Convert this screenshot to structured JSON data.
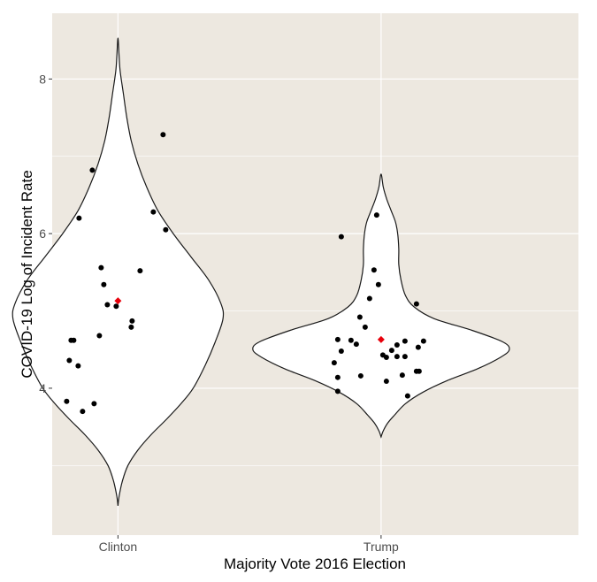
{
  "chart_data": {
    "type": "violin",
    "xlabel": "Majority Vote 2016 Election",
    "ylabel": "COVID-19 Log of Incident Rate",
    "categories": [
      "Clinton",
      "Trump"
    ],
    "ylim": [
      2.1,
      8.85
    ],
    "yticks": [
      4,
      6,
      8
    ],
    "grid": true,
    "colors": {
      "panel_background": "#ede8e0",
      "grid": "#ffffff",
      "violin_fill": "#ffffff",
      "violin_outline": "#1a1a1a",
      "point": "#000000",
      "mean_marker": "#e8000b"
    },
    "groups": [
      {
        "name": "Clinton",
        "mean": 5.13,
        "range": [
          2.48,
          8.53
        ],
        "density_profile": [
          [
            2.48,
            0.0
          ],
          [
            2.6,
            0.01
          ],
          [
            2.8,
            0.04
          ],
          [
            3.0,
            0.09
          ],
          [
            3.2,
            0.18
          ],
          [
            3.4,
            0.3
          ],
          [
            3.6,
            0.44
          ],
          [
            3.8,
            0.57
          ],
          [
            4.0,
            0.68
          ],
          [
            4.3,
            0.79
          ],
          [
            4.6,
            0.88
          ],
          [
            4.9,
            0.95
          ],
          [
            5.1,
            0.93
          ],
          [
            5.4,
            0.82
          ],
          [
            5.7,
            0.66
          ],
          [
            6.0,
            0.5
          ],
          [
            6.3,
            0.36
          ],
          [
            6.6,
            0.26
          ],
          [
            6.9,
            0.18
          ],
          [
            7.2,
            0.12
          ],
          [
            7.5,
            0.08
          ],
          [
            7.8,
            0.05
          ],
          [
            8.1,
            0.02
          ],
          [
            8.3,
            0.01
          ],
          [
            8.53,
            0.0
          ]
        ],
        "points": [
          {
            "x": -0.58,
            "y": 3.83
          },
          {
            "x": -0.4,
            "y": 3.7
          },
          {
            "x": -0.27,
            "y": 3.8
          },
          {
            "x": -0.55,
            "y": 4.36
          },
          {
            "x": -0.45,
            "y": 4.29
          },
          {
            "x": -0.5,
            "y": 4.62
          },
          {
            "x": -0.53,
            "y": 4.62
          },
          {
            "x": -0.21,
            "y": 4.68
          },
          {
            "x": 0.15,
            "y": 4.79
          },
          {
            "x": 0.16,
            "y": 4.87
          },
          {
            "x": -0.12,
            "y": 5.08
          },
          {
            "x": -0.02,
            "y": 5.06
          },
          {
            "x": -0.16,
            "y": 5.34
          },
          {
            "x": -0.19,
            "y": 5.56
          },
          {
            "x": 0.25,
            "y": 5.52
          },
          {
            "x": 0.54,
            "y": 6.05
          },
          {
            "x": 0.4,
            "y": 6.28
          },
          {
            "x": -0.44,
            "y": 6.2
          },
          {
            "x": -0.29,
            "y": 6.82
          },
          {
            "x": 0.51,
            "y": 7.28
          }
        ]
      },
      {
        "name": "Trump",
        "mean": 4.63,
        "range": [
          3.37,
          6.77
        ],
        "density_profile": [
          [
            3.37,
            0.0
          ],
          [
            3.45,
            0.02
          ],
          [
            3.55,
            0.06
          ],
          [
            3.65,
            0.12
          ],
          [
            3.8,
            0.22
          ],
          [
            3.95,
            0.38
          ],
          [
            4.1,
            0.6
          ],
          [
            4.25,
            0.87
          ],
          [
            4.4,
            1.08
          ],
          [
            4.5,
            1.16
          ],
          [
            4.6,
            1.1
          ],
          [
            4.75,
            0.82
          ],
          [
            4.9,
            0.48
          ],
          [
            5.05,
            0.3
          ],
          [
            5.2,
            0.22
          ],
          [
            5.4,
            0.18
          ],
          [
            5.6,
            0.16
          ],
          [
            5.8,
            0.16
          ],
          [
            6.0,
            0.15
          ],
          [
            6.15,
            0.13
          ],
          [
            6.3,
            0.09
          ],
          [
            6.45,
            0.05
          ],
          [
            6.6,
            0.02
          ],
          [
            6.77,
            0.0
          ]
        ],
        "points": [
          {
            "x": -0.45,
            "y": 5.96
          },
          {
            "x": -0.05,
            "y": 6.24
          },
          {
            "x": -0.08,
            "y": 5.53
          },
          {
            "x": -0.03,
            "y": 5.34
          },
          {
            "x": -0.13,
            "y": 5.16
          },
          {
            "x": 0.4,
            "y": 5.09
          },
          {
            "x": -0.24,
            "y": 4.92
          },
          {
            "x": -0.18,
            "y": 4.79
          },
          {
            "x": -0.49,
            "y": 4.63
          },
          {
            "x": -0.34,
            "y": 4.62
          },
          {
            "x": -0.28,
            "y": 4.57
          },
          {
            "x": 0.48,
            "y": 4.61
          },
          {
            "x": 0.27,
            "y": 4.61
          },
          {
            "x": 0.42,
            "y": 4.53
          },
          {
            "x": 0.18,
            "y": 4.56
          },
          {
            "x": 0.12,
            "y": 4.49
          },
          {
            "x": -0.45,
            "y": 4.48
          },
          {
            "x": 0.02,
            "y": 4.43
          },
          {
            "x": 0.06,
            "y": 4.4
          },
          {
            "x": 0.18,
            "y": 4.41
          },
          {
            "x": 0.27,
            "y": 4.41
          },
          {
            "x": -0.53,
            "y": 4.33
          },
          {
            "x": 0.4,
            "y": 4.22
          },
          {
            "x": 0.43,
            "y": 4.22
          },
          {
            "x": 0.24,
            "y": 4.17
          },
          {
            "x": -0.23,
            "y": 4.16
          },
          {
            "x": -0.49,
            "y": 4.14
          },
          {
            "x": 0.06,
            "y": 4.09
          },
          {
            "x": -0.49,
            "y": 3.96
          },
          {
            "x": 0.3,
            "y": 3.9
          }
        ]
      }
    ]
  }
}
